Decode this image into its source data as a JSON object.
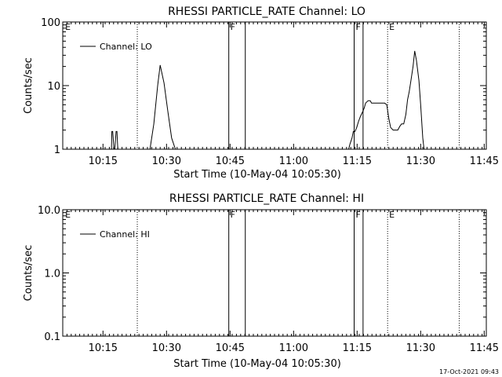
{
  "footer": {
    "date_stamp": "17-Oct-2021 09:43"
  },
  "chart_data": [
    {
      "type": "line",
      "title": "RHESSI PARTICLE_RATE Channel: LO",
      "xlabel": "Start Time (10-May-04 10:05:30)",
      "ylabel": "Counts/sec",
      "x_unit": "minutes from 10:05:30",
      "xlim": [
        0,
        100
      ],
      "ylim": [
        1,
        100
      ],
      "yscale": "log",
      "xticks": [
        {
          "x": 9.5,
          "label": "10:15"
        },
        {
          "x": 24.5,
          "label": "10:30"
        },
        {
          "x": 39.5,
          "label": "10:45"
        },
        {
          "x": 54.5,
          "label": "11:00"
        },
        {
          "x": 69.5,
          "label": "11:15"
        },
        {
          "x": 84.5,
          "label": "11:30"
        },
        {
          "x": 99.5,
          "label": "11:45"
        }
      ],
      "yticks": [
        {
          "y": 1,
          "label": "1"
        },
        {
          "y": 10,
          "label": "10"
        },
        {
          "y": 100,
          "label": "100"
        }
      ],
      "legend": {
        "entries": [
          "Channel: LO"
        ],
        "placement": "top-left"
      },
      "markers": [
        {
          "x": 0.2,
          "label": "E",
          "style": "dotted",
          "line": false
        },
        {
          "x": 17.6,
          "label": "",
          "style": "dotted",
          "line": true
        },
        {
          "x": 39.2,
          "label": "F",
          "style": "solid",
          "line": true
        },
        {
          "x": 43.1,
          "label": "",
          "style": "solid",
          "line": true
        },
        {
          "x": 68.8,
          "label": "F",
          "style": "solid",
          "line": true
        },
        {
          "x": 70.9,
          "label": "",
          "style": "solid",
          "line": true
        },
        {
          "x": 76.7,
          "label": "E",
          "style": "dotted",
          "line": true
        },
        {
          "x": 93.6,
          "label": "",
          "style": "dotted",
          "line": true
        }
      ],
      "series": [
        {
          "name": "Channel: LO",
          "x": [
            11.5,
            11.6,
            11.8,
            12.1,
            12.3,
            12.6,
            12.8,
            13.0,
            13.2,
            13.5,
            13.7,
            20.6,
            21.5,
            22.4,
            23.0,
            23.9,
            24.8,
            25.7,
            26.6,
            27.4,
            67.5,
            67.8,
            68.3,
            68.6,
            69.0,
            69.4,
            69.8,
            70.3,
            70.9,
            71.2,
            71.5,
            72.1,
            72.6,
            72.9,
            73.3,
            73.8,
            74.3,
            74.8,
            75.2,
            75.6,
            75.8,
            76.0,
            76.5,
            77.0,
            77.4,
            78.0,
            78.6,
            79.1,
            79.6,
            80.0,
            80.5,
            81.0,
            81.4,
            81.8,
            82.2,
            82.7,
            83.1,
            83.5,
            84.1,
            84.5,
            85.0,
            85.3
          ],
          "y": [
            1,
            1.9,
            1.9,
            1,
            1,
            1.9,
            1.9,
            1,
            1,
            1,
            1,
            1,
            2.5,
            10,
            21,
            11,
            4,
            1.5,
            1,
            1,
            1,
            1.2,
            1.5,
            1.9,
            1.9,
            2.2,
            2.7,
            3.3,
            4.0,
            4.5,
            5.3,
            5.8,
            5.8,
            5.3,
            5.3,
            5.3,
            5.3,
            5.3,
            5.3,
            5.3,
            5.3,
            5.3,
            5.0,
            3.0,
            2.2,
            2.0,
            2.0,
            2.0,
            2.3,
            2.5,
            2.5,
            3.5,
            6.0,
            8.0,
            12,
            20,
            35,
            25,
            12,
            5,
            1.5,
            1
          ]
        }
      ]
    },
    {
      "type": "line",
      "title": "RHESSI PARTICLE_RATE Channel: HI",
      "xlabel": "Start Time (10-May-04 10:05:30)",
      "ylabel": "Counts/sec",
      "x_unit": "minutes from 10:05:30",
      "xlim": [
        0,
        100
      ],
      "ylim": [
        0.1,
        10
      ],
      "yscale": "log",
      "xticks": [
        {
          "x": 9.5,
          "label": "10:15"
        },
        {
          "x": 24.5,
          "label": "10:30"
        },
        {
          "x": 39.5,
          "label": "10:45"
        },
        {
          "x": 54.5,
          "label": "11:00"
        },
        {
          "x": 69.5,
          "label": "11:15"
        },
        {
          "x": 84.5,
          "label": "11:30"
        },
        {
          "x": 99.5,
          "label": "11:45"
        }
      ],
      "yticks": [
        {
          "y": 0.1,
          "label": "0.1"
        },
        {
          "y": 1,
          "label": "1.0"
        },
        {
          "y": 10,
          "label": "10.0"
        }
      ],
      "legend": {
        "entries": [
          "Channel: HI"
        ],
        "placement": "top-left"
      },
      "markers": [
        {
          "x": 0.2,
          "label": "E",
          "style": "dotted",
          "line": false
        },
        {
          "x": 17.6,
          "label": "",
          "style": "dotted",
          "line": true
        },
        {
          "x": 39.2,
          "label": "F",
          "style": "solid",
          "line": true
        },
        {
          "x": 43.1,
          "label": "",
          "style": "solid",
          "line": true
        },
        {
          "x": 68.8,
          "label": "F",
          "style": "solid",
          "line": true
        },
        {
          "x": 70.9,
          "label": "",
          "style": "solid",
          "line": true
        },
        {
          "x": 76.7,
          "label": "E",
          "style": "dotted",
          "line": true
        },
        {
          "x": 93.6,
          "label": "",
          "style": "dotted",
          "line": true
        }
      ],
      "series": [
        {
          "name": "Channel: HI",
          "x": [],
          "y": []
        }
      ]
    }
  ]
}
